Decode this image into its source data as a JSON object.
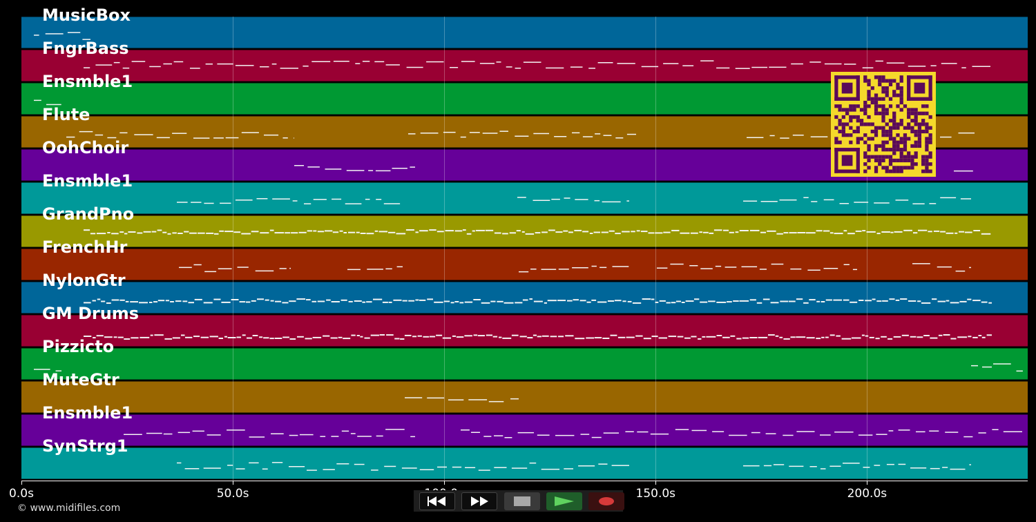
{
  "tracks": [
    {
      "label": "MusicBox",
      "color": "#006699"
    },
    {
      "label": "FngrBass",
      "color": "#990033"
    },
    {
      "label": "Ensmble1",
      "color": "#009933"
    },
    {
      "label": "Flute",
      "color": "#996600"
    },
    {
      "label": "OohChoir",
      "color": "#660099"
    },
    {
      "label": "Ensmble1",
      "color": "#009999"
    },
    {
      "label": "GrandPno",
      "color": "#999900"
    },
    {
      "label": "FrenchHr",
      "color": "#992600"
    },
    {
      "label": "NylonGtr",
      "color": "#006699"
    },
    {
      "label": "GM Drums",
      "color": "#990033"
    },
    {
      "label": "Pizzicto",
      "color": "#009933"
    },
    {
      "label": "MuteGtr",
      "color": "#996600"
    },
    {
      "label": "Ensmble1",
      "color": "#660099"
    },
    {
      "label": "SynStrg1",
      "color": "#009999"
    }
  ],
  "axis": {
    "ticks": [
      "0.0s",
      "50.0s",
      "100.0s",
      "150.0s",
      "200.0s"
    ],
    "tick_values": [
      0,
      50,
      100,
      150,
      200
    ],
    "range": [
      0,
      238
    ]
  },
  "copyright": "© www.midifiles.com",
  "controls": {
    "rewind_icon": "rewind-icon",
    "fast_forward_icon": "fast-forward-icon",
    "stop_icon": "stop-icon",
    "play_icon": "play-icon",
    "record_icon": "record-icon"
  },
  "qr_code": {
    "icon": "qr-code-icon",
    "color": "#f5d92b",
    "dark": "#5a0a5a"
  }
}
